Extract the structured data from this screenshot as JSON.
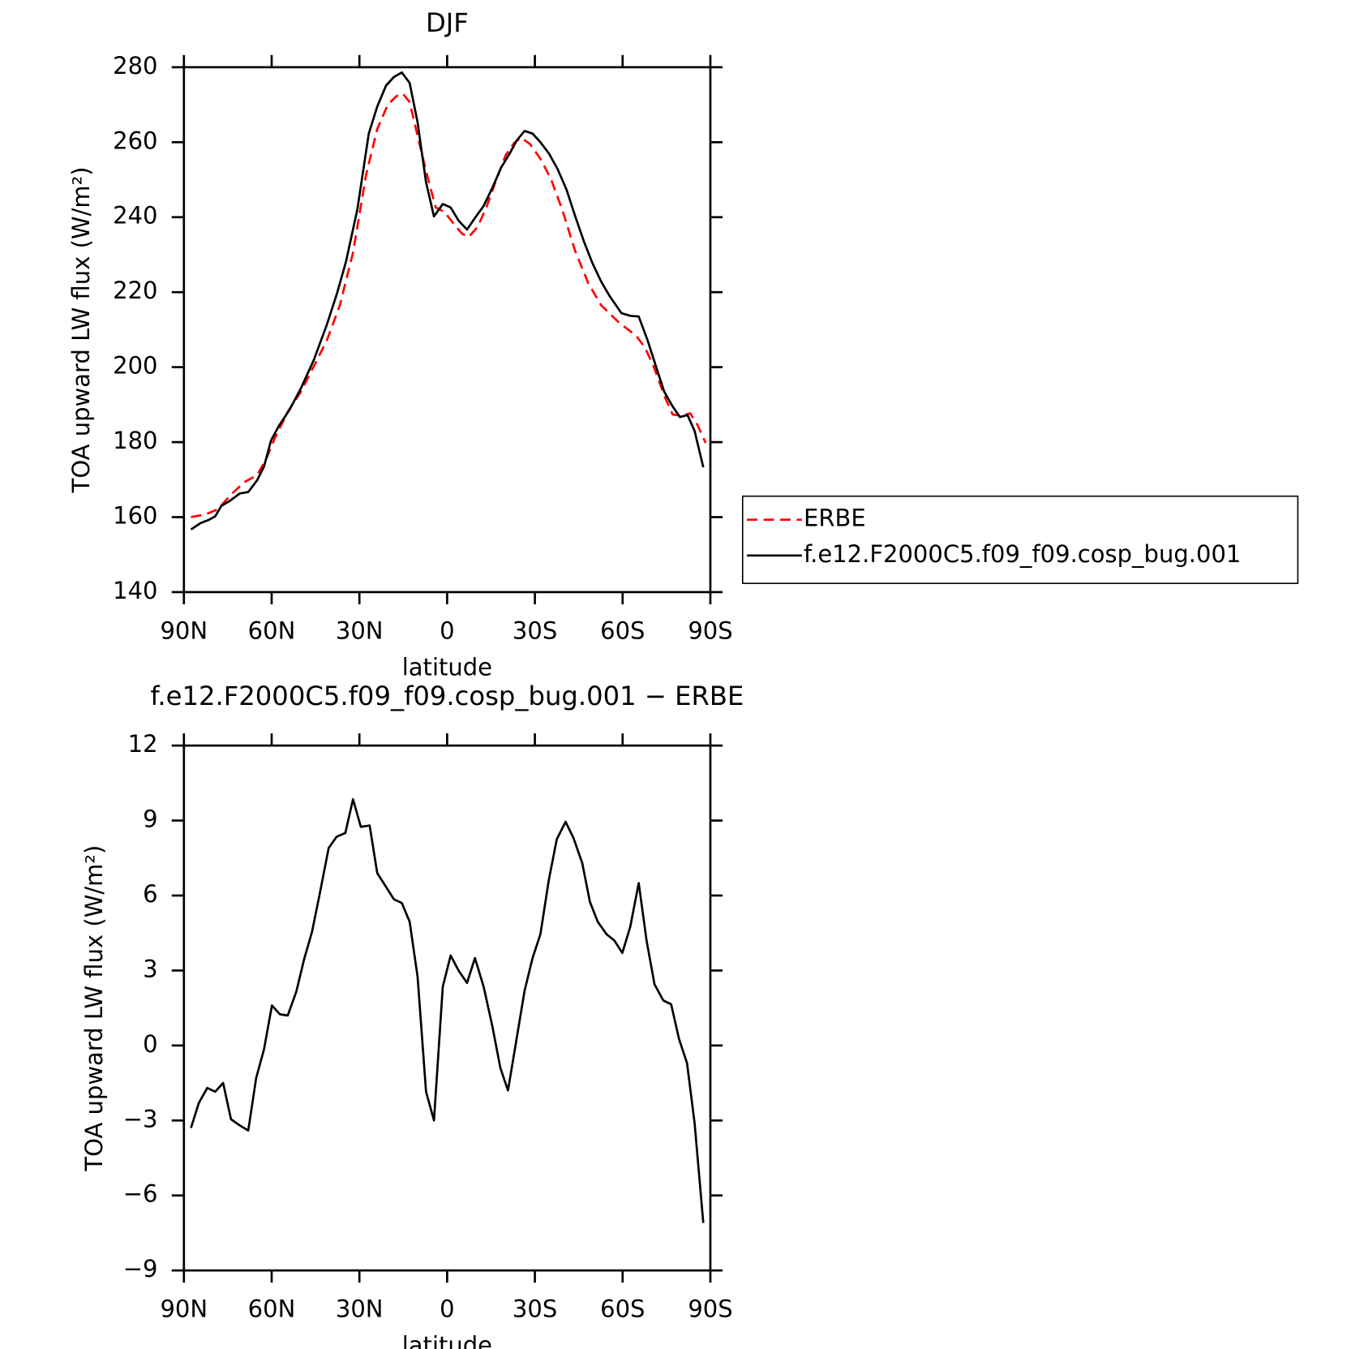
{
  "chart_data": [
    {
      "type": "line",
      "title": "DJF",
      "xlabel": "latitude",
      "ylabel": "TOA upward LW flux (W/m²)",
      "xlim": [
        90,
        -90
      ],
      "xticks": [
        {
          "value": 90,
          "label": "90N"
        },
        {
          "value": 60,
          "label": "60N"
        },
        {
          "value": 30,
          "label": "30N"
        },
        0,
        {
          "value": -30,
          "label": "30S"
        },
        {
          "value": -60,
          "label": "60S"
        },
        {
          "value": -90,
          "label": "90S"
        }
      ],
      "ylim": [
        140,
        280
      ],
      "yticks": [
        140,
        160,
        180,
        200,
        220,
        240,
        260,
        280
      ],
      "legend": "right",
      "series": [
        {
          "name": "ERBE",
          "color": "#ff0000",
          "style": "dashed",
          "x": [
            87.6,
            82.8,
            78.4,
            73.9,
            69.4,
            65,
            62,
            59,
            54.5,
            50.1,
            45.6,
            41.1,
            36.7,
            32.2,
            27.7,
            23.9,
            20.3,
            17.3,
            15.2,
            12.8,
            9.8,
            6.9,
            3.9,
            0.9,
            -2.1,
            -5.1,
            -7.4,
            -10.4,
            -13.4,
            -16.4,
            -20,
            -22.9,
            -25.3,
            -28.3,
            -31.9,
            -35.5,
            -39.3,
            -43.8,
            -48.3,
            -52.7,
            -58.7,
            -64.6,
            -67.6,
            -70.6,
            -74.5,
            -77.1,
            -80.1,
            -83.1,
            -85.4,
            -88.4
          ],
          "values": [
            160,
            160.7,
            162.1,
            166,
            169.3,
            171.2,
            175.3,
            180.9,
            188.1,
            193.3,
            200.2,
            207.2,
            216.5,
            230.5,
            251.4,
            263.5,
            270,
            272.3,
            273,
            270.7,
            260.7,
            251.4,
            242.6,
            241.4,
            238.4,
            235.6,
            234.7,
            237.4,
            242.6,
            249.1,
            256.5,
            259.8,
            261.2,
            259.5,
            255.6,
            250.2,
            242.1,
            230.9,
            222.3,
            216.5,
            211.9,
            208.4,
            205.3,
            200.2,
            191.9,
            187.4,
            187,
            187.7,
            184.9,
            179.8
          ]
        },
        {
          "name": "f.e12.F2000C5.f09_f09.cosp_bug.001",
          "color": "#000000",
          "style": "solid",
          "x": [
            87.6,
            84.3,
            81.4,
            79.3,
            77.2,
            74.2,
            70.9,
            68,
            65,
            62.6,
            60.2,
            57.5,
            53.9,
            50.1,
            45.6,
            41.1,
            37.6,
            34.6,
            30.7,
            26.8,
            23.9,
            20.9,
            18.2,
            15.5,
            12.8,
            10.1,
            7.2,
            4.5,
            1.5,
            -1.2,
            -3.9,
            -6.8,
            -9.5,
            -12.5,
            -15.5,
            -18.5,
            -21.4,
            -23.8,
            -26.5,
            -29.2,
            -31.9,
            -34.8,
            -37.8,
            -40.8,
            -43.8,
            -46.8,
            -49.7,
            -52.7,
            -55.7,
            -59.6,
            -62.6,
            -65.5,
            -68.5,
            -71.5,
            -74.2,
            -76.9,
            -79.6,
            -82.2,
            -84.6,
            -87.6
          ],
          "values": [
            156.7,
            158.4,
            159.3,
            160.2,
            163,
            164.4,
            166.3,
            166.7,
            169.8,
            173.5,
            180.5,
            184.4,
            188.6,
            194.2,
            201.9,
            211.4,
            219.8,
            228.1,
            242.1,
            262.3,
            269.5,
            275.1,
            277.4,
            278.6,
            275.8,
            265.3,
            249.3,
            240.2,
            243.5,
            242.6,
            239.1,
            236.7,
            239.8,
            243,
            247.9,
            253.3,
            257,
            260.5,
            263,
            262.3,
            260,
            257,
            252.8,
            247.4,
            240.2,
            233.5,
            227.7,
            222.8,
            218.8,
            214.4,
            213.7,
            213.5,
            207.2,
            200,
            193.5,
            189.8,
            186.7,
            187.2,
            183,
            173.3
          ]
        }
      ]
    },
    {
      "type": "line",
      "title": "f.e12.F2000C5.f09_f09.cosp_bug.001 − ERBE",
      "xlabel": "latitude",
      "ylabel": "TOA upward LW flux (W/m²)",
      "xlim": [
        90,
        -90
      ],
      "xticks": [
        {
          "value": 90,
          "label": "90N"
        },
        {
          "value": 60,
          "label": "60N"
        },
        {
          "value": 30,
          "label": "30N"
        },
        0,
        {
          "value": -30,
          "label": "30S"
        },
        {
          "value": -60,
          "label": "60S"
        },
        {
          "value": -90,
          "label": "90S"
        }
      ],
      "ylim": [
        -9,
        12
      ],
      "yticks": [
        {
          "value": -9,
          "label": "−9"
        },
        {
          "value": -6,
          "label": "−6"
        },
        {
          "value": -3,
          "label": "−3"
        },
        0,
        3,
        6,
        9,
        12
      ],
      "series": [
        {
          "color": "#000000",
          "style": "solid",
          "x": [
            87.6,
            84.9,
            82,
            79.3,
            76.6,
            73.9,
            70.9,
            68,
            65.3,
            62.6,
            59.9,
            57.2,
            54.5,
            51.6,
            48.9,
            46.2,
            43.5,
            40.5,
            37.8,
            34.8,
            32.2,
            29.5,
            26.5,
            23.9,
            21.2,
            18.2,
            15.5,
            12.8,
            10.1,
            7.2,
            4.5,
            1.5,
            -1.2,
            -3.9,
            -6.8,
            -9.5,
            -12.5,
            -15.5,
            -18.2,
            -20.8,
            -23.5,
            -26.5,
            -29.2,
            -31.9,
            -34.8,
            -37.5,
            -40.5,
            -43.2,
            -46.2,
            -48.8,
            -51.5,
            -54.5,
            -57.2,
            -59.9,
            -62.6,
            -65.5,
            -68.2,
            -70.9,
            -73.9,
            -76.6,
            -79.3,
            -82,
            -84.6,
            -87.6
          ],
          "values": [
            -3.3,
            -2.3,
            -1.7,
            -1.85,
            -1.5,
            -2.95,
            -3.2,
            -3.4,
            -1.3,
            -0.15,
            1.6,
            1.25,
            1.2,
            2.15,
            3.45,
            4.55,
            6.1,
            7.9,
            8.35,
            8.5,
            9.85,
            8.75,
            8.8,
            6.9,
            6.4,
            5.85,
            5.7,
            4.95,
            2.75,
            -1.85,
            -3,
            2.35,
            3.6,
            3,
            2.5,
            3.5,
            2.35,
            0.75,
            -0.9,
            -1.8,
            0.1,
            2.2,
            3.5,
            4.45,
            6.65,
            8.25,
            8.95,
            8.3,
            7.3,
            5.75,
            4.95,
            4.45,
            4.2,
            3.7,
            4.75,
            6.5,
            4.2,
            2.45,
            1.8,
            1.65,
            0.25,
            -0.7,
            -3.1,
            -7.1
          ]
        }
      ]
    }
  ]
}
